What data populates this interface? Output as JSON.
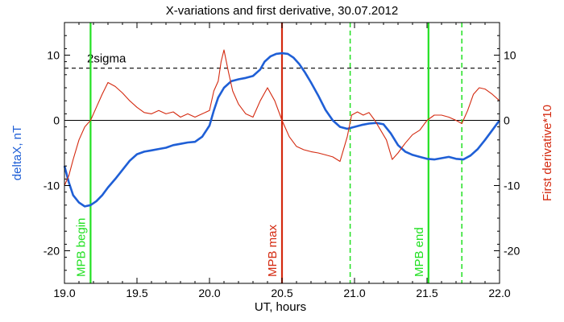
{
  "chart_data": {
    "type": "line",
    "title": "X-variations and first derivative, 30.07.2012",
    "xlabel": "UT, hours",
    "ylabel_left": "deltaX, nT",
    "ylabel_right": "First derivative*10",
    "xlim": [
      19.0,
      22.0
    ],
    "ylim": [
      -25,
      15
    ],
    "x_ticks": [
      "19.0",
      "19.5",
      "20.0",
      "20.5",
      "21.0",
      "21.5",
      "22.0"
    ],
    "x_tick_values": [
      19.0,
      19.5,
      20.0,
      20.5,
      21.0,
      21.5,
      22.0
    ],
    "y_ticks": [
      "-20",
      "-10",
      "0",
      "10"
    ],
    "y_tick_values": [
      -20,
      -10,
      0,
      10
    ],
    "grid": false,
    "colors": {
      "deltaX": "#1f5fd6",
      "derivative": "#d42a10",
      "mpb_begin_end": "#22e022",
      "mpb_max": "#d42a10",
      "dashed_green": "#22e022",
      "threshold": "#000000",
      "zero": "#000000",
      "axes": "#000000"
    },
    "threshold": {
      "label": "2sigma",
      "value": 8
    },
    "zero_line": 0,
    "markers": [
      {
        "label": "MPB begin",
        "x": 19.18,
        "style": "solid",
        "color": "#22e022"
      },
      {
        "label": "MPB max",
        "x": 20.5,
        "style": "solid",
        "color": "#d42a10"
      },
      {
        "label": "MPB end",
        "x": 21.51,
        "style": "solid",
        "color": "#22e022"
      }
    ],
    "dashed_markers": [
      20.97,
      21.74
    ],
    "series": [
      {
        "key": "deltaX",
        "color": "#1f5fd6",
        "x": [
          19.0,
          19.03,
          19.06,
          19.1,
          19.14,
          19.18,
          19.22,
          19.26,
          19.3,
          19.35,
          19.4,
          19.45,
          19.5,
          19.55,
          19.6,
          19.65,
          19.7,
          19.75,
          19.8,
          19.85,
          19.9,
          19.95,
          20.0,
          20.03,
          20.06,
          20.1,
          20.15,
          20.2,
          20.25,
          20.3,
          20.35,
          20.38,
          20.42,
          20.46,
          20.5,
          20.54,
          20.58,
          20.62,
          20.66,
          20.7,
          20.75,
          20.8,
          20.85,
          20.9,
          20.95,
          21.0,
          21.05,
          21.1,
          21.15,
          21.2,
          21.25,
          21.3,
          21.35,
          21.4,
          21.45,
          21.5,
          21.55,
          21.6,
          21.65,
          21.7,
          21.75,
          21.8,
          21.85,
          21.9,
          21.95,
          22.0
        ],
        "y": [
          -7.0,
          -9.5,
          -11.5,
          -12.6,
          -13.2,
          -13.0,
          -12.4,
          -11.5,
          -10.3,
          -9.0,
          -7.6,
          -6.2,
          -5.2,
          -4.8,
          -4.6,
          -4.4,
          -4.2,
          -3.8,
          -3.6,
          -3.4,
          -3.3,
          -2.5,
          -0.8,
          1.5,
          3.5,
          5.0,
          6.0,
          6.3,
          6.5,
          6.8,
          7.8,
          9.0,
          9.8,
          10.2,
          10.3,
          10.2,
          9.6,
          8.6,
          7.3,
          5.8,
          3.8,
          1.6,
          0.0,
          -1.0,
          -1.3,
          -1.0,
          -0.7,
          -0.5,
          -0.4,
          -0.6,
          -2.0,
          -3.8,
          -4.8,
          -5.3,
          -5.6,
          -5.9,
          -6.0,
          -5.8,
          -5.6,
          -5.9,
          -6.0,
          -5.4,
          -4.4,
          -3.0,
          -1.5,
          0.0
        ]
      },
      {
        "key": "derivative",
        "color": "#d42a10",
        "x": [
          19.0,
          19.03,
          19.06,
          19.1,
          19.14,
          19.18,
          19.22,
          19.26,
          19.3,
          19.35,
          19.4,
          19.45,
          19.5,
          19.55,
          19.6,
          19.65,
          19.7,
          19.75,
          19.8,
          19.85,
          19.9,
          19.95,
          20.0,
          20.03,
          20.06,
          20.08,
          20.1,
          20.13,
          20.16,
          20.2,
          20.25,
          20.3,
          20.35,
          20.4,
          20.45,
          20.5,
          20.55,
          20.6,
          20.65,
          20.7,
          20.75,
          20.8,
          20.85,
          20.9,
          20.95,
          20.98,
          21.02,
          21.06,
          21.1,
          21.14,
          21.18,
          21.22,
          21.26,
          21.3,
          21.35,
          21.4,
          21.45,
          21.5,
          21.55,
          21.6,
          21.65,
          21.7,
          21.74,
          21.78,
          21.82,
          21.86,
          21.9,
          21.95,
          22.0
        ],
        "y": [
          -10.0,
          -8.5,
          -6.0,
          -3.0,
          -1.0,
          0.0,
          2.0,
          4.0,
          5.8,
          5.2,
          4.2,
          3.0,
          2.0,
          1.2,
          1.0,
          1.5,
          1.0,
          1.3,
          0.5,
          1.0,
          0.5,
          1.0,
          1.5,
          4.5,
          6.0,
          9.0,
          10.8,
          7.5,
          4.5,
          2.5,
          1.0,
          0.5,
          3.0,
          5.0,
          3.0,
          0.0,
          -2.5,
          -4.0,
          -4.5,
          -4.8,
          -5.0,
          -5.3,
          -5.6,
          -6.3,
          -2.5,
          0.8,
          1.3,
          0.8,
          1.2,
          0.0,
          -1.5,
          -3.0,
          -6.0,
          -5.0,
          -3.5,
          -2.2,
          -1.5,
          0.0,
          0.8,
          0.8,
          0.5,
          0.0,
          -0.5,
          1.5,
          4.0,
          5.0,
          4.8,
          4.0,
          3.0
        ]
      }
    ]
  }
}
